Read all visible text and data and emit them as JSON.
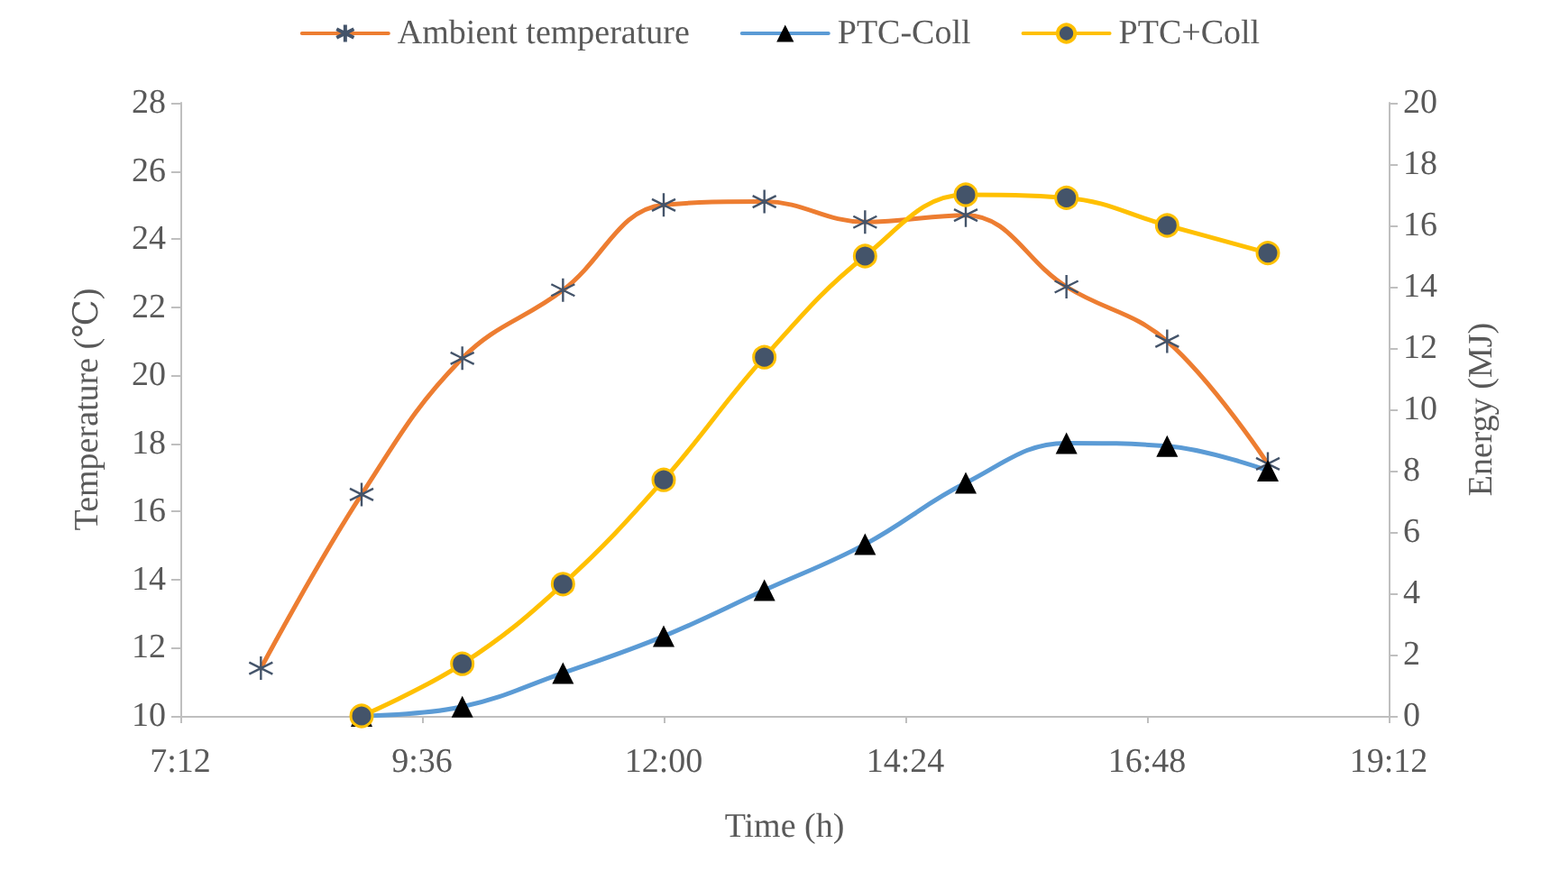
{
  "chart_data": {
    "type": "line",
    "xlabel": "Time (h)",
    "ylabel": "Temperature (℃)",
    "y2label": "Energy (MJ)",
    "xlim": [
      7.2,
      19.2
    ],
    "xticks": [
      {
        "value": 7.2,
        "label": "7:12"
      },
      {
        "value": 9.6,
        "label": "9:36"
      },
      {
        "value": 12,
        "label": "12:00"
      },
      {
        "value": 14.4,
        "label": "14:24"
      },
      {
        "value": 16.8,
        "label": "16:48"
      },
      {
        "value": 19.2,
        "label": "19:12"
      }
    ],
    "ylim": [
      10,
      28
    ],
    "yticks": [
      10,
      12,
      14,
      16,
      18,
      20,
      22,
      24,
      26,
      28
    ],
    "y2lim": [
      0,
      20
    ],
    "y2ticks": [
      0,
      2,
      4,
      6,
      8,
      10,
      12,
      14,
      16,
      18,
      20
    ],
    "grid": false,
    "legend": "top",
    "line_style": "solid",
    "series": [
      {
        "name": "Ambient temperature",
        "color": "#ed7d31",
        "marker": "cross",
        "x": [
          8,
          9,
          10,
          11,
          12,
          13,
          14,
          15,
          16,
          17,
          18
        ],
        "values": [
          11.4,
          16.5,
          20.5,
          22.5,
          25.0,
          25.1,
          24.5,
          24.7,
          22.6,
          21.0,
          17.4
        ]
      },
      {
        "name": "PTC-Coll",
        "color": "#5b9bd5",
        "marker": "triangle",
        "axis": "y2",
        "x": [
          9,
          10,
          11,
          12,
          13,
          14,
          15,
          16,
          17,
          18
        ],
        "values": [
          0,
          0.3,
          1.4,
          2.6,
          4.1,
          5.6,
          7.6,
          8.9,
          8.8,
          8.0
        ]
      },
      {
        "name": "PTC+Coll",
        "color": "#ffc000",
        "marker": "circle",
        "axis": "y2",
        "x": [
          9,
          10,
          11,
          12,
          13,
          14,
          15,
          16,
          17,
          18
        ],
        "values": [
          0,
          1.7,
          4.3,
          7.7,
          11.7,
          15.0,
          17.0,
          16.9,
          16.0,
          15.1
        ]
      }
    ]
  }
}
